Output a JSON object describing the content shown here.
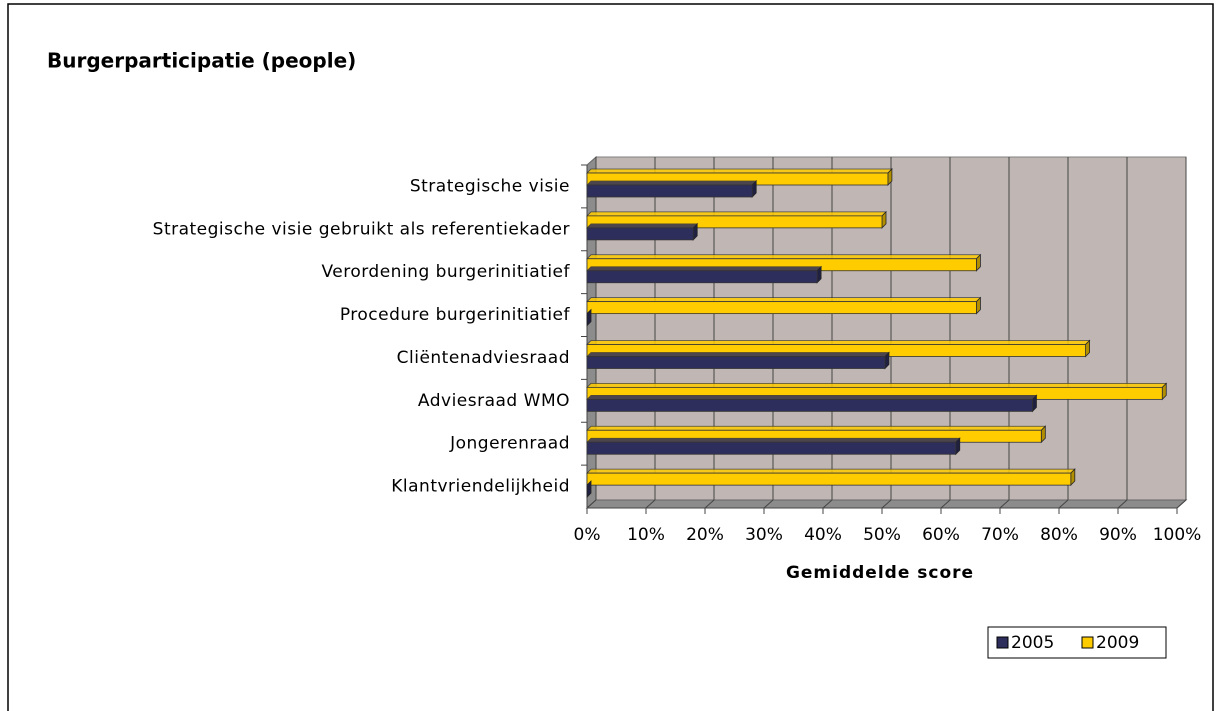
{
  "chart_data": {
    "type": "bar",
    "orientation": "horizontal",
    "title": "Burgerparticipatie (people)",
    "x_label": "Gemiddelde score",
    "categories": [
      "Strategische visie",
      "Strategische visie gebruikt als referentiekader",
      "Verordening burgerinitiatief",
      "Procedure burgerinitiatief",
      "Cliëntenadviesraad",
      "Adviesraad WMO",
      "Jongerenraad",
      "Klantvriendelijkheid"
    ],
    "series": [
      {
        "name": "2005",
        "color": "#2e2e5c",
        "values": [
          28,
          18,
          39,
          0,
          50.5,
          75.5,
          62.5,
          0
        ]
      },
      {
        "name": "2009",
        "color": "#ffcc00",
        "values": [
          51,
          50,
          66,
          66,
          84.5,
          97.5,
          77,
          82
        ]
      }
    ],
    "xlim": [
      0,
      100
    ],
    "xticks": [
      {
        "value": 0,
        "label": "0%"
      },
      {
        "value": 10,
        "label": "10%"
      },
      {
        "value": 20,
        "label": "20%"
      },
      {
        "value": 30,
        "label": "30%"
      },
      {
        "value": 40,
        "label": "40%"
      },
      {
        "value": 50,
        "label": "50%"
      },
      {
        "value": 60,
        "label": "60%"
      },
      {
        "value": 70,
        "label": "70%"
      },
      {
        "value": 80,
        "label": "80%"
      },
      {
        "value": 90,
        "label": "90%"
      },
      {
        "value": 100,
        "label": "100%"
      }
    ],
    "grid": true,
    "legend": "bottom-right"
  }
}
